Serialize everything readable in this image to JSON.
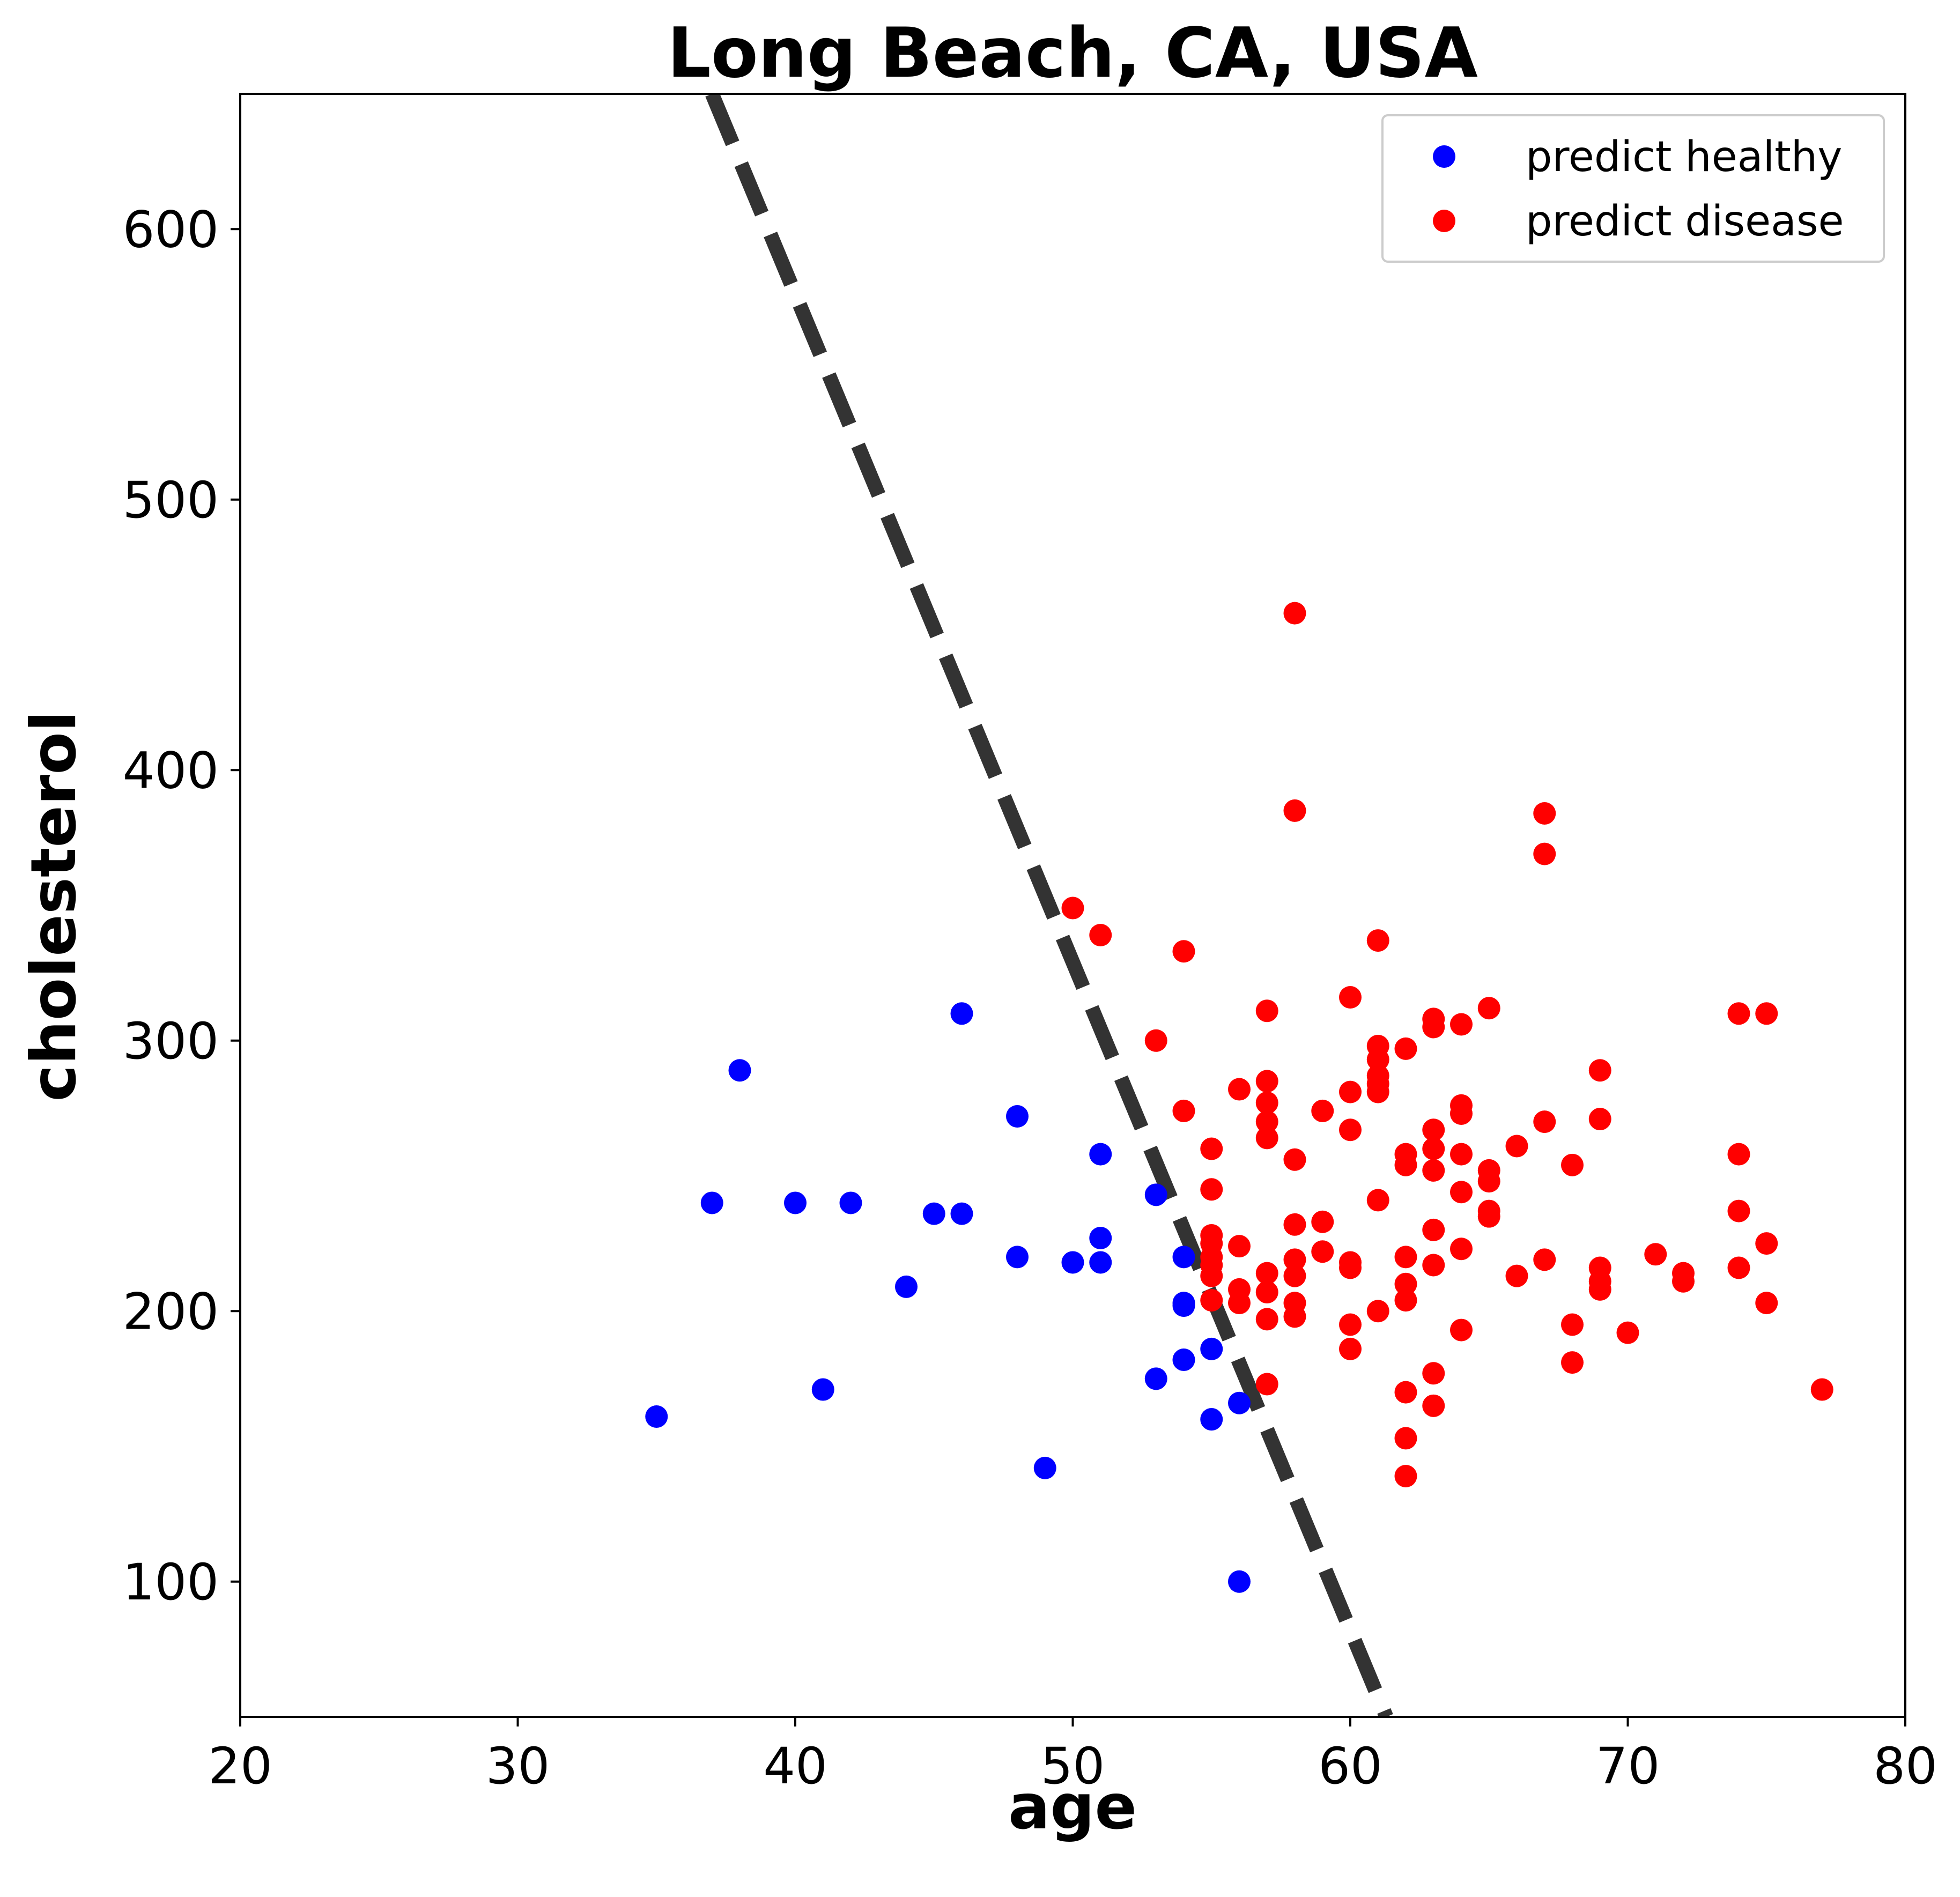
{
  "chart_data": {
    "type": "scatter",
    "title": "Long Beach, CA, USA",
    "xlabel": "age",
    "ylabel": "cholesterol",
    "xlim": [
      20,
      80
    ],
    "ylim": [
      50,
      650
    ],
    "xticks": [
      20,
      30,
      40,
      50,
      60,
      70,
      80
    ],
    "yticks": [
      100,
      200,
      300,
      400,
      500,
      600
    ],
    "grid": false,
    "legend_position": "top-right",
    "decision_boundary": {
      "style": "dashed",
      "color": "#333333",
      "points": [
        [
          37,
          650
        ],
        [
          61.3,
          50
        ]
      ]
    },
    "series": [
      {
        "name": "predict healthy",
        "color": "#0000ff",
        "points": [
          [
            35,
            161
          ],
          [
            37,
            240
          ],
          [
            38,
            289
          ],
          [
            40,
            240
          ],
          [
            41,
            171
          ],
          [
            42,
            240
          ],
          [
            44,
            209
          ],
          [
            45,
            236
          ],
          [
            46,
            310
          ],
          [
            46,
            236
          ],
          [
            48,
            272
          ],
          [
            48,
            220
          ],
          [
            49,
            142
          ],
          [
            50,
            218
          ],
          [
            51,
            258
          ],
          [
            51,
            227
          ],
          [
            51,
            218
          ],
          [
            53,
            243
          ],
          [
            53,
            175
          ],
          [
            54,
            220
          ],
          [
            54,
            203
          ],
          [
            54,
            202
          ],
          [
            54,
            182
          ],
          [
            55,
            186
          ],
          [
            55,
            160
          ],
          [
            56,
            166
          ],
          [
            56,
            100
          ]
        ]
      },
      {
        "name": "predict disease",
        "color": "#ff0000",
        "points": [
          [
            50,
            349
          ],
          [
            51,
            339
          ],
          [
            53,
            300
          ],
          [
            54,
            333
          ],
          [
            54,
            274
          ],
          [
            55,
            260
          ],
          [
            55,
            245
          ],
          [
            55,
            228
          ],
          [
            55,
            225
          ],
          [
            55,
            220
          ],
          [
            55,
            217
          ],
          [
            55,
            213
          ],
          [
            55,
            204
          ],
          [
            56,
            282
          ],
          [
            56,
            224
          ],
          [
            56,
            208
          ],
          [
            56,
            203
          ],
          [
            57,
            311
          ],
          [
            57,
            285
          ],
          [
            57,
            277
          ],
          [
            57,
            270
          ],
          [
            57,
            264
          ],
          [
            57,
            214
          ],
          [
            57,
            207
          ],
          [
            57,
            197
          ],
          [
            57,
            173
          ],
          [
            58,
            458
          ],
          [
            58,
            385
          ],
          [
            58,
            256
          ],
          [
            58,
            232
          ],
          [
            58,
            219
          ],
          [
            58,
            213
          ],
          [
            58,
            203
          ],
          [
            58,
            198
          ],
          [
            59,
            274
          ],
          [
            59,
            233
          ],
          [
            59,
            222
          ],
          [
            60,
            316
          ],
          [
            60,
            281
          ],
          [
            60,
            267
          ],
          [
            60,
            218
          ],
          [
            60,
            216
          ],
          [
            60,
            195
          ],
          [
            60,
            186
          ],
          [
            61,
            337
          ],
          [
            61,
            298
          ],
          [
            61,
            293
          ],
          [
            61,
            287
          ],
          [
            61,
            284
          ],
          [
            61,
            281
          ],
          [
            61,
            241
          ],
          [
            61,
            200
          ],
          [
            62,
            297
          ],
          [
            62,
            258
          ],
          [
            62,
            254
          ],
          [
            62,
            220
          ],
          [
            62,
            210
          ],
          [
            62,
            204
          ],
          [
            62,
            170
          ],
          [
            62,
            153
          ],
          [
            62,
            139
          ],
          [
            63,
            308
          ],
          [
            63,
            305
          ],
          [
            63,
            267
          ],
          [
            63,
            260
          ],
          [
            63,
            252
          ],
          [
            63,
            230
          ],
          [
            63,
            217
          ],
          [
            63,
            177
          ],
          [
            63,
            165
          ],
          [
            64,
            306
          ],
          [
            64,
            276
          ],
          [
            64,
            273
          ],
          [
            64,
            258
          ],
          [
            64,
            244
          ],
          [
            64,
            223
          ],
          [
            64,
            193
          ],
          [
            65,
            312
          ],
          [
            65,
            252
          ],
          [
            65,
            248
          ],
          [
            65,
            237
          ],
          [
            65,
            235
          ],
          [
            66,
            261
          ],
          [
            66,
            213
          ],
          [
            67,
            384
          ],
          [
            67,
            369
          ],
          [
            67,
            270
          ],
          [
            67,
            219
          ],
          [
            68,
            254
          ],
          [
            68,
            195
          ],
          [
            68,
            181
          ],
          [
            69,
            289
          ],
          [
            69,
            271
          ],
          [
            69,
            216
          ],
          [
            69,
            211
          ],
          [
            69,
            208
          ],
          [
            70,
            192
          ],
          [
            71,
            221
          ],
          [
            72,
            214
          ],
          [
            72,
            211
          ],
          [
            74,
            310
          ],
          [
            74,
            258
          ],
          [
            74,
            237
          ],
          [
            74,
            216
          ],
          [
            75,
            310
          ],
          [
            75,
            225
          ],
          [
            75,
            203
          ],
          [
            77,
            171
          ]
        ]
      }
    ]
  }
}
